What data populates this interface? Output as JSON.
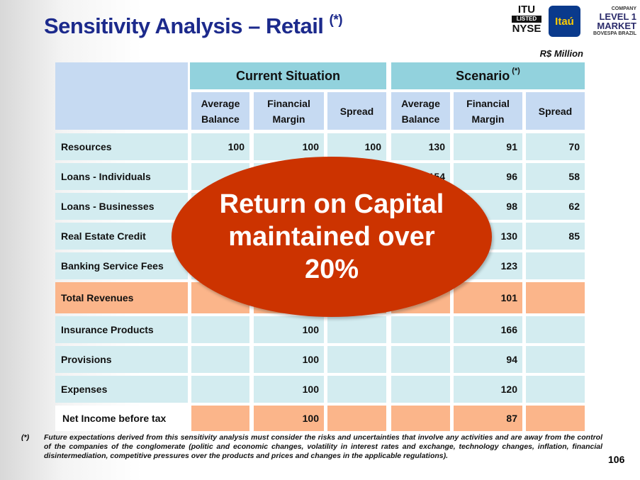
{
  "header": {
    "title": "Sensitivity Analysis – Retail",
    "title_note": "(*)",
    "unit": "R$ Million",
    "page_number": "106"
  },
  "logos": {
    "nyse": [
      "ITU",
      "LISTED",
      "NYSE"
    ],
    "itau": "Itaú",
    "bovespa": [
      "COMPANY",
      "LEVEL 1",
      "MARKET",
      "BOVESPA BRAZIL"
    ]
  },
  "table": {
    "groups": [
      {
        "label": "Current Situation"
      },
      {
        "label": "Scenario",
        "note": "(*)"
      }
    ],
    "columns": [
      "Average Balance",
      "Financial Margin",
      "Spread",
      "Average Balance",
      "Financial Margin",
      "Spread"
    ],
    "rows": [
      {
        "label": "Resources",
        "cells": [
          100,
          100,
          100,
          130,
          91,
          70
        ]
      },
      {
        "label": "Loans - Individuals",
        "cells": [
          null,
          null,
          null,
          154,
          96,
          58
        ]
      },
      {
        "label": "Loans - Businesses",
        "cells": [
          null,
          null,
          null,
          null,
          98,
          62
        ]
      },
      {
        "label": "Real Estate Credit",
        "cells": [
          null,
          null,
          null,
          null,
          130,
          85
        ]
      },
      {
        "label": "Banking Service Fees",
        "cells": [
          null,
          null,
          null,
          null,
          123,
          null
        ]
      },
      {
        "label": "Total Revenues",
        "cells": [
          null,
          null,
          null,
          null,
          101,
          null
        ]
      },
      {
        "label": "Insurance Products",
        "cells": [
          null,
          100,
          null,
          null,
          166,
          null
        ]
      },
      {
        "label": "Provisions",
        "cells": [
          null,
          100,
          null,
          null,
          94,
          null
        ]
      },
      {
        "label": "Expenses",
        "cells": [
          null,
          100,
          null,
          null,
          120,
          null
        ]
      },
      {
        "label": "Net Income before tax",
        "cells": [
          null,
          100,
          null,
          null,
          87,
          null
        ]
      }
    ]
  },
  "callout": {
    "lines": [
      "Return on Capital",
      "maintained over",
      "20%"
    ]
  },
  "footnote": {
    "marker": "(*)",
    "text": "Future expectations derived from this sensitivity analysis must consider the risks and uncertainties that involve any activities and are away from the control of the companies of the conglomerate (politic and economic changes, volatility in interest rates and exchange, technology changes, inflation, financial disintermediation, competitive pressures over the products and prices and changes in the applicable regulations)."
  }
}
